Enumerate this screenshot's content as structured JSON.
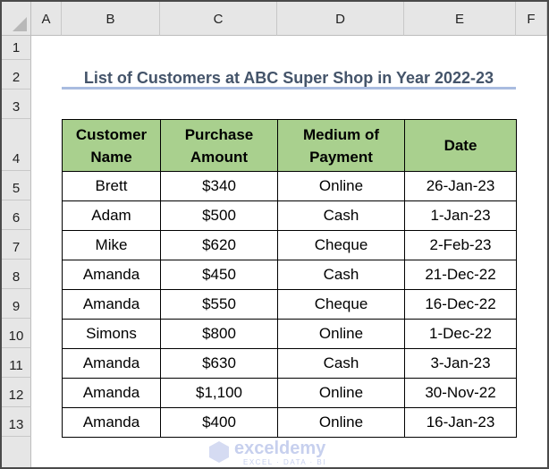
{
  "columns": [
    "A",
    "B",
    "C",
    "D",
    "E",
    "F"
  ],
  "rows": [
    "1",
    "2",
    "3",
    "4",
    "5",
    "6",
    "7",
    "8",
    "9",
    "10",
    "11",
    "12",
    "13"
  ],
  "title": "List of Customers at ABC Super Shop in Year 2022-23",
  "table": {
    "headers": [
      "Customer Name",
      "Purchase Amount",
      "Medium of Payment",
      "Date"
    ],
    "rows": [
      [
        "Brett",
        "$340",
        "Online",
        "26-Jan-23"
      ],
      [
        "Adam",
        "$500",
        "Cash",
        "1-Jan-23"
      ],
      [
        "Mike",
        "$620",
        "Cheque",
        "2-Feb-23"
      ],
      [
        "Amanda",
        "$450",
        "Cash",
        "21-Dec-22"
      ],
      [
        "Amanda",
        "$550",
        "Cheque",
        "16-Dec-22"
      ],
      [
        "Simons",
        "$800",
        "Online",
        "1-Dec-22"
      ],
      [
        "Amanda",
        "$630",
        "Cash",
        "3-Jan-23"
      ],
      [
        "Amanda",
        "$1,100",
        "Online",
        "30-Nov-22"
      ],
      [
        "Amanda",
        "$400",
        "Online",
        "16-Jan-23"
      ]
    ]
  },
  "watermark": {
    "name": "exceldemy",
    "tagline": "EXCEL · DATA · BI"
  },
  "colors": {
    "header_fill": "#a9d08e",
    "title": "#44546a",
    "title_underline": "#a9bce0"
  }
}
